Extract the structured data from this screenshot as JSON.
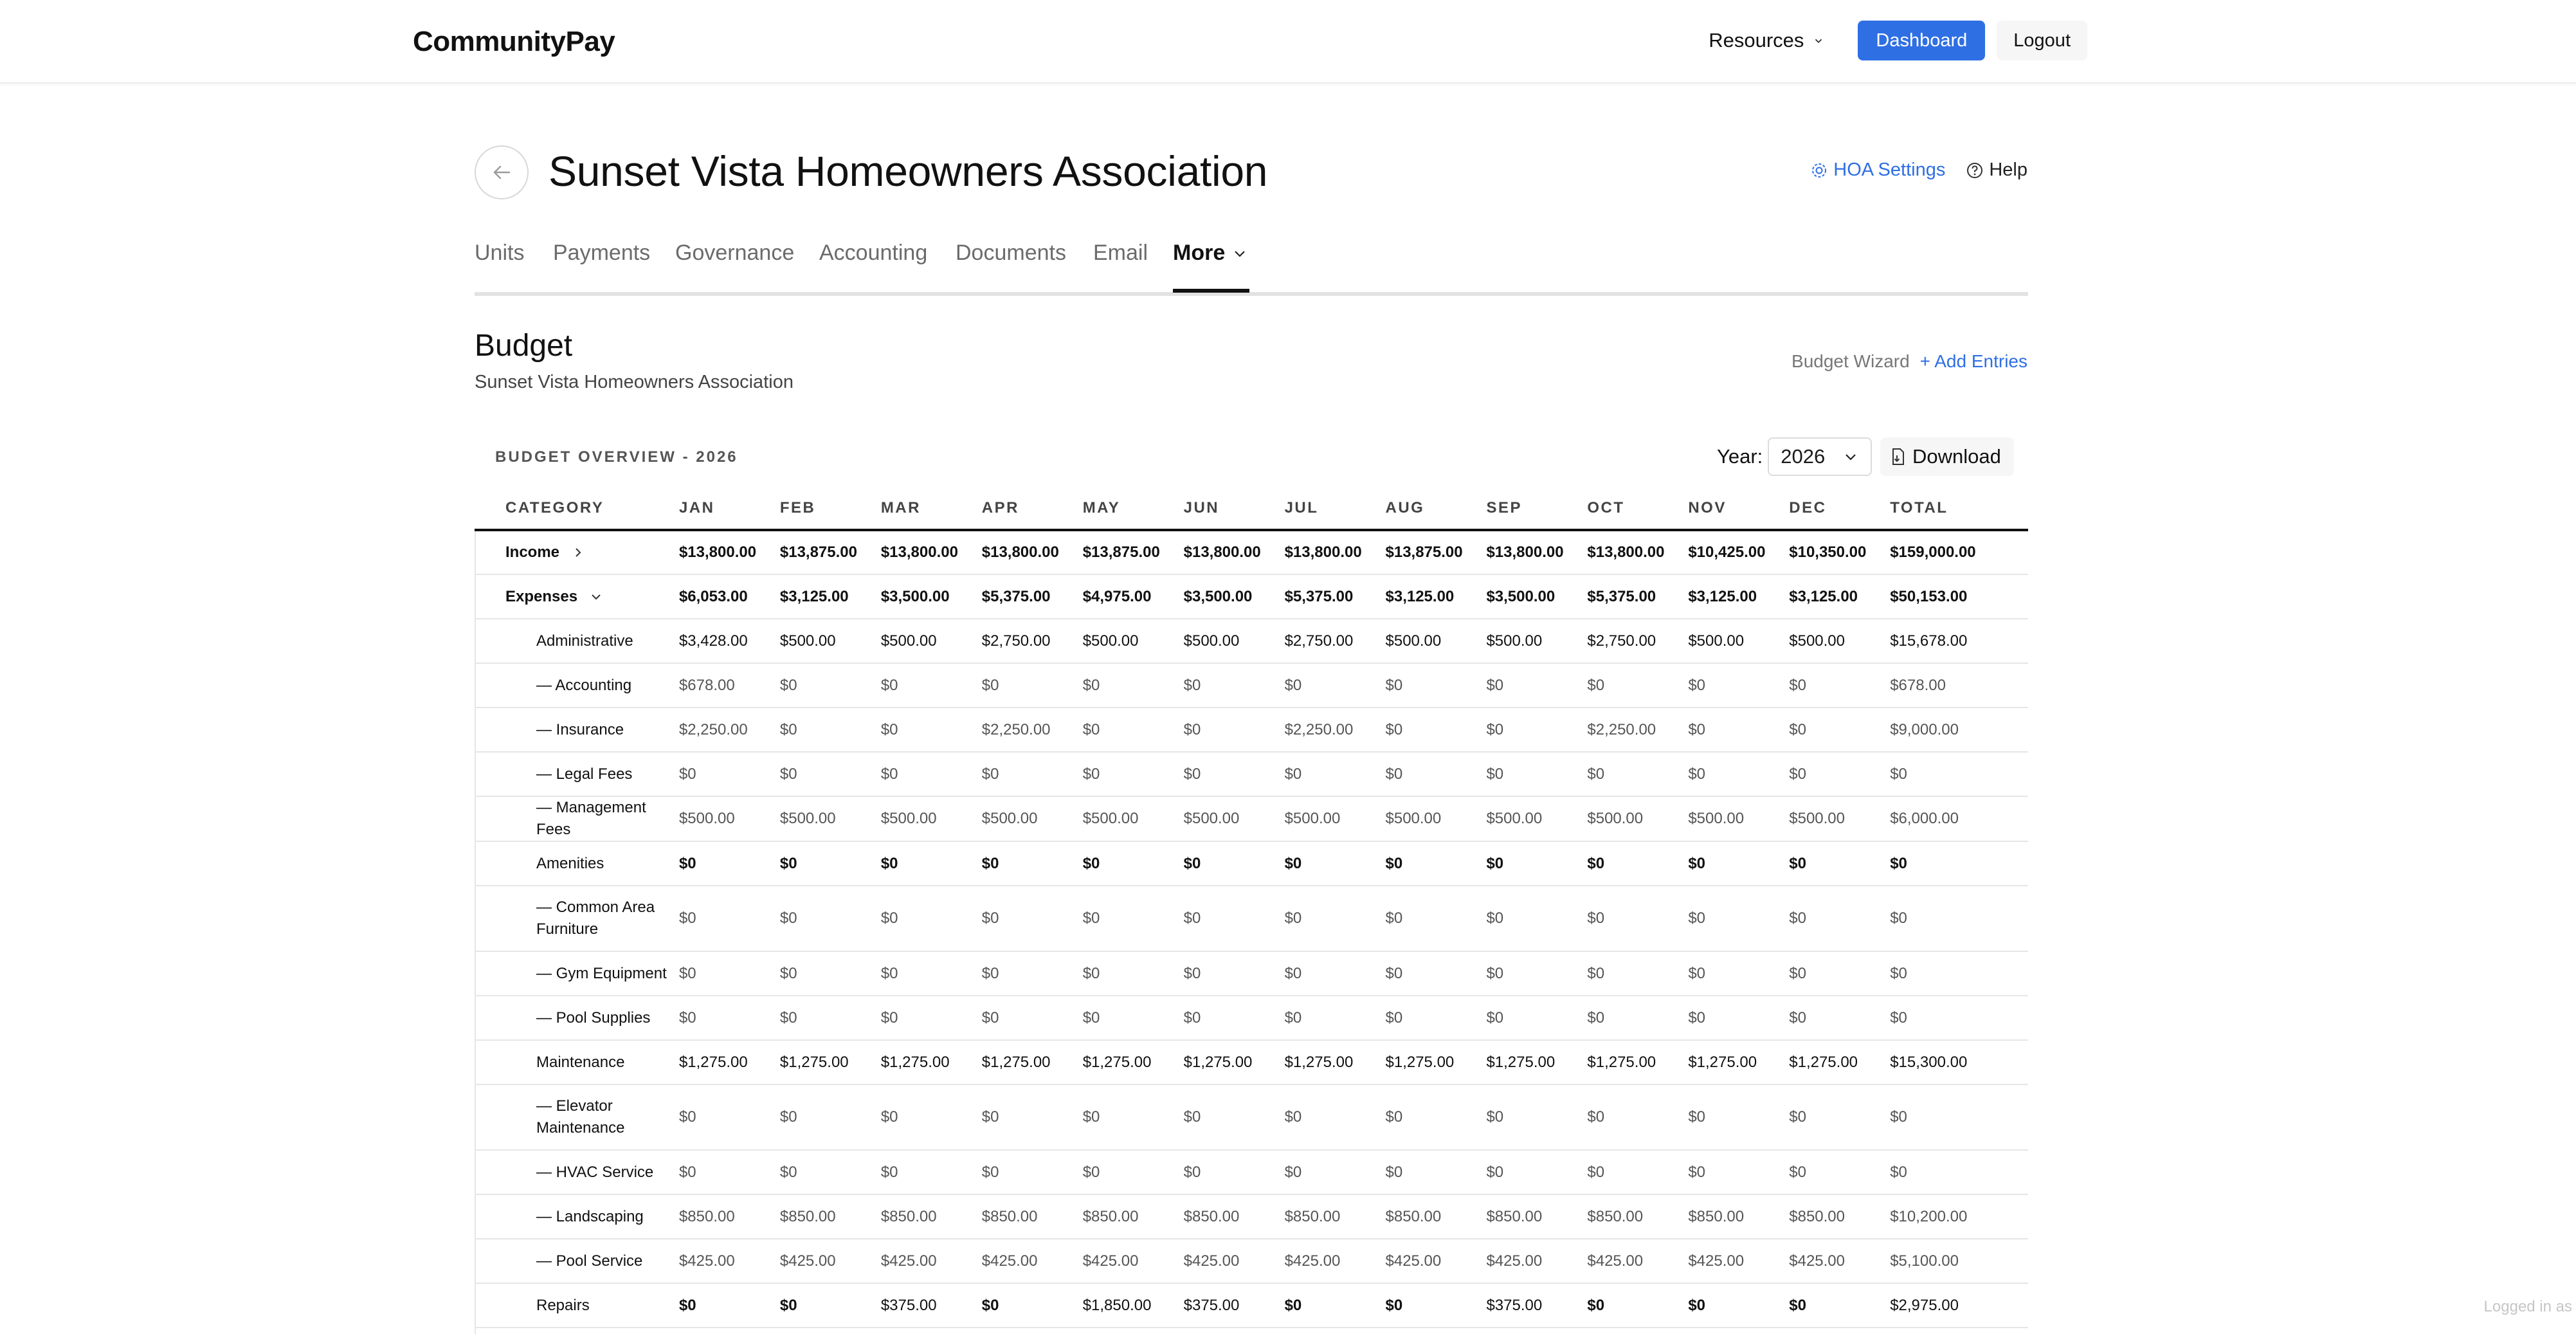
{
  "header": {
    "brand": "CommunityPay",
    "resources_label": "Resources",
    "dashboard_label": "Dashboard",
    "logout_label": "Logout"
  },
  "page": {
    "title": "Sunset Vista Homeowners Association",
    "hoa_settings_label": "HOA Settings",
    "help_label": "Help"
  },
  "tabs": [
    {
      "label": "Units"
    },
    {
      "label": "Payments"
    },
    {
      "label": "Governance"
    },
    {
      "label": "Accounting"
    },
    {
      "label": "Documents"
    },
    {
      "label": "Email"
    },
    {
      "label": "More"
    }
  ],
  "budget": {
    "title": "Budget",
    "subtitle": "Sunset Vista Homeowners Association",
    "wizard_label": "Budget Wizard",
    "add_entries_label": "+ Add Entries",
    "overview_label": "BUDGET OVERVIEW - 2026",
    "year_label": "Year:",
    "year_value": "2026",
    "download_label": "Download",
    "columns": [
      "CATEGORY",
      "JAN",
      "FEB",
      "MAR",
      "APR",
      "MAY",
      "JUN",
      "JUL",
      "AUG",
      "SEP",
      "OCT",
      "NOV",
      "DEC",
      "TOTAL"
    ],
    "rows": [
      {
        "category": "Income",
        "kind": "group",
        "expanded": false,
        "values": [
          "$13,800.00",
          "$13,875.00",
          "$13,800.00",
          "$13,800.00",
          "$13,875.00",
          "$13,800.00",
          "$13,800.00",
          "$13,875.00",
          "$13,800.00",
          "$13,800.00",
          "$10,425.00",
          "$10,350.00",
          "$159,000.00"
        ]
      },
      {
        "category": "Expenses",
        "kind": "group",
        "expanded": true,
        "values": [
          "$6,053.00",
          "$3,125.00",
          "$3,500.00",
          "$5,375.00",
          "$4,975.00",
          "$3,500.00",
          "$5,375.00",
          "$3,125.00",
          "$3,500.00",
          "$5,375.00",
          "$3,125.00",
          "$3,125.00",
          "$50,153.00"
        ]
      },
      {
        "category": "Administrative",
        "kind": "section",
        "values": [
          "$3,428.00",
          "$500.00",
          "$500.00",
          "$2,750.00",
          "$500.00",
          "$500.00",
          "$2,750.00",
          "$500.00",
          "$500.00",
          "$2,750.00",
          "$500.00",
          "$500.00",
          "$15,678.00"
        ]
      },
      {
        "category": "— Accounting",
        "kind": "child",
        "values": [
          "$678.00",
          "$0",
          "$0",
          "$0",
          "$0",
          "$0",
          "$0",
          "$0",
          "$0",
          "$0",
          "$0",
          "$0",
          "$678.00"
        ]
      },
      {
        "category": "— Insurance",
        "kind": "child",
        "values": [
          "$2,250.00",
          "$0",
          "$0",
          "$2,250.00",
          "$0",
          "$0",
          "$2,250.00",
          "$0",
          "$0",
          "$2,250.00",
          "$0",
          "$0",
          "$9,000.00"
        ]
      },
      {
        "category": "— Legal Fees",
        "kind": "child",
        "values": [
          "$0",
          "$0",
          "$0",
          "$0",
          "$0",
          "$0",
          "$0",
          "$0",
          "$0",
          "$0",
          "$0",
          "$0",
          "$0"
        ]
      },
      {
        "category": "— Management Fees",
        "kind": "child",
        "values": [
          "$500.00",
          "$500.00",
          "$500.00",
          "$500.00",
          "$500.00",
          "$500.00",
          "$500.00",
          "$500.00",
          "$500.00",
          "$500.00",
          "$500.00",
          "$500.00",
          "$6,000.00"
        ]
      },
      {
        "category": "Amenities",
        "kind": "section",
        "values": [
          "$0",
          "$0",
          "$0",
          "$0",
          "$0",
          "$0",
          "$0",
          "$0",
          "$0",
          "$0",
          "$0",
          "$0",
          "$0"
        ]
      },
      {
        "category": "— Common Area Furniture",
        "kind": "child",
        "tall": true,
        "values": [
          "$0",
          "$0",
          "$0",
          "$0",
          "$0",
          "$0",
          "$0",
          "$0",
          "$0",
          "$0",
          "$0",
          "$0",
          "$0"
        ]
      },
      {
        "category": "— Gym Equipment",
        "kind": "child",
        "values": [
          "$0",
          "$0",
          "$0",
          "$0",
          "$0",
          "$0",
          "$0",
          "$0",
          "$0",
          "$0",
          "$0",
          "$0",
          "$0"
        ]
      },
      {
        "category": "— Pool Supplies",
        "kind": "child",
        "values": [
          "$0",
          "$0",
          "$0",
          "$0",
          "$0",
          "$0",
          "$0",
          "$0",
          "$0",
          "$0",
          "$0",
          "$0",
          "$0"
        ]
      },
      {
        "category": "Maintenance",
        "kind": "section",
        "values": [
          "$1,275.00",
          "$1,275.00",
          "$1,275.00",
          "$1,275.00",
          "$1,275.00",
          "$1,275.00",
          "$1,275.00",
          "$1,275.00",
          "$1,275.00",
          "$1,275.00",
          "$1,275.00",
          "$1,275.00",
          "$15,300.00"
        ]
      },
      {
        "category": "— Elevator Maintenance",
        "kind": "child",
        "tall": true,
        "values": [
          "$0",
          "$0",
          "$0",
          "$0",
          "$0",
          "$0",
          "$0",
          "$0",
          "$0",
          "$0",
          "$0",
          "$0",
          "$0"
        ]
      },
      {
        "category": "— HVAC Service",
        "kind": "child",
        "values": [
          "$0",
          "$0",
          "$0",
          "$0",
          "$0",
          "$0",
          "$0",
          "$0",
          "$0",
          "$0",
          "$0",
          "$0",
          "$0"
        ]
      },
      {
        "category": "— Landscaping",
        "kind": "child",
        "values": [
          "$850.00",
          "$850.00",
          "$850.00",
          "$850.00",
          "$850.00",
          "$850.00",
          "$850.00",
          "$850.00",
          "$850.00",
          "$850.00",
          "$850.00",
          "$850.00",
          "$10,200.00"
        ]
      },
      {
        "category": "— Pool Service",
        "kind": "child",
        "values": [
          "$425.00",
          "$425.00",
          "$425.00",
          "$425.00",
          "$425.00",
          "$425.00",
          "$425.00",
          "$425.00",
          "$425.00",
          "$425.00",
          "$425.00",
          "$425.00",
          "$5,100.00"
        ]
      },
      {
        "category": "Repairs",
        "kind": "section",
        "values": [
          "$0",
          "$0",
          "$375.00",
          "$0",
          "$1,850.00",
          "$375.00",
          "$0",
          "$0",
          "$375.00",
          "$0",
          "$0",
          "$0",
          "$2,975.00"
        ]
      }
    ]
  },
  "footer": {
    "logged_in_label": "Logged in as"
  },
  "colors": {
    "accent": "#2f6fe4",
    "text": "#111111",
    "muted": "#555555",
    "border": "#e6e6e6"
  },
  "icons": {
    "back": "arrow-left-icon",
    "settings": "gear-icon",
    "help": "question-circle-icon",
    "chevron": "chevron-down-icon",
    "download": "document-download-icon"
  }
}
